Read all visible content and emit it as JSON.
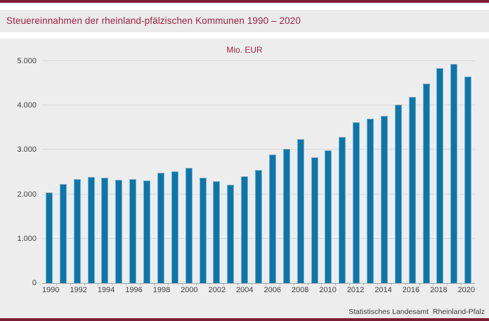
{
  "page": {
    "title": "Steuereinnahmen der rheinland-pfälzischen Kommunen 1990 – 2020",
    "footer": "Statistisches Landesamt  Rheinland-Pfalz"
  },
  "colors": {
    "accent_maroon": "#7b1b34",
    "title_red": "#9e2246",
    "bar_fill": "#0d76a8",
    "bar_edge": "#79afcd",
    "panel_gray": "#ededed",
    "band_gray": "#ebebeb",
    "gridline_gray": "#d9d9d9",
    "axis_gray": "#a6a6a6",
    "tick_text": "#3f3f3f"
  },
  "chart_data": {
    "type": "bar",
    "title": "Mio. EUR",
    "xlabel": "",
    "ylabel": "Mio. EUR",
    "categories": [
      1990,
      1991,
      1992,
      1993,
      1994,
      1995,
      1996,
      1997,
      1998,
      1999,
      2000,
      2001,
      2002,
      2003,
      2004,
      2005,
      2006,
      2007,
      2008,
      2009,
      2010,
      2011,
      2012,
      2013,
      2014,
      2015,
      2016,
      2017,
      2018,
      2019,
      2020
    ],
    "values": [
      2040,
      2230,
      2340,
      2390,
      2380,
      2320,
      2340,
      2310,
      2480,
      2510,
      2600,
      2380,
      2290,
      2210,
      2410,
      2540,
      2890,
      3030,
      3250,
      2840,
      2990,
      3290,
      3630,
      3700,
      3760,
      4020,
      4190,
      4500,
      4840,
      4930,
      4650
    ],
    "ylim": [
      0,
      5000
    ],
    "ytick_step": 1000,
    "ytick_labels": [
      "0",
      "1.000",
      "2.000",
      "3.000",
      "4.000",
      "5.000"
    ],
    "xtick_every": 2,
    "grid": true,
    "legend": "none"
  }
}
